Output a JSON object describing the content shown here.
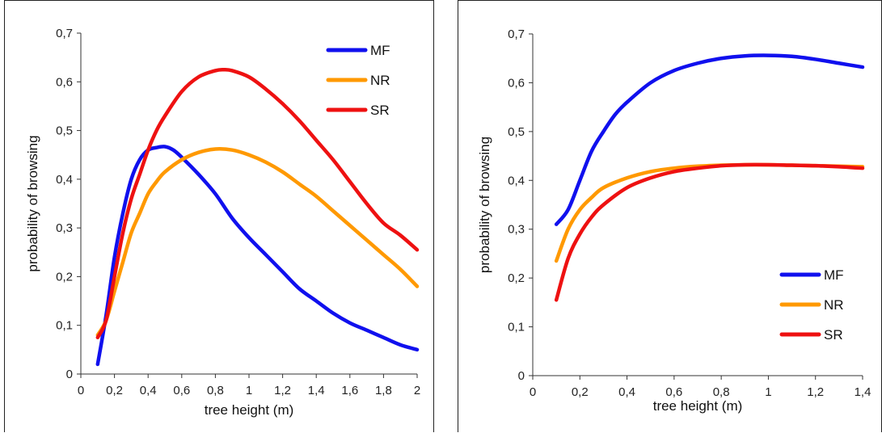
{
  "chart_data": [
    {
      "type": "line",
      "xlabel": "tree height (m)",
      "ylabel": "probability of browsing",
      "xlim": [
        0,
        2
      ],
      "ylim": [
        0,
        0.7
      ],
      "xticks": [
        "0",
        "0,2",
        "0,4",
        "0,6",
        "0,8",
        "1",
        "1,2",
        "1,4",
        "1,6",
        "1,8",
        "2"
      ],
      "yticks": [
        "0",
        "0,1",
        "0,2",
        "0,3",
        "0,4",
        "0,5",
        "0,6",
        "0,7"
      ],
      "legend_position": "top-right",
      "series": [
        {
          "name": "MF",
          "color": "#1010ee",
          "points": [
            [
              0.1,
              0.02
            ],
            [
              0.15,
              0.12
            ],
            [
              0.2,
              0.24
            ],
            [
              0.25,
              0.33
            ],
            [
              0.3,
              0.4
            ],
            [
              0.35,
              0.44
            ],
            [
              0.4,
              0.46
            ],
            [
              0.45,
              0.465
            ],
            [
              0.5,
              0.467
            ],
            [
              0.55,
              0.46
            ],
            [
              0.6,
              0.445
            ],
            [
              0.7,
              0.41
            ],
            [
              0.8,
              0.37
            ],
            [
              0.9,
              0.32
            ],
            [
              1.0,
              0.28
            ],
            [
              1.1,
              0.245
            ],
            [
              1.2,
              0.21
            ],
            [
              1.3,
              0.175
            ],
            [
              1.4,
              0.15
            ],
            [
              1.5,
              0.125
            ],
            [
              1.6,
              0.105
            ],
            [
              1.7,
              0.09
            ],
            [
              1.8,
              0.075
            ],
            [
              1.9,
              0.06
            ],
            [
              2.0,
              0.05
            ]
          ]
        },
        {
          "name": "NR",
          "color": "#ff9900",
          "points": [
            [
              0.1,
              0.08
            ],
            [
              0.15,
              0.11
            ],
            [
              0.2,
              0.17
            ],
            [
              0.25,
              0.23
            ],
            [
              0.3,
              0.29
            ],
            [
              0.35,
              0.33
            ],
            [
              0.4,
              0.37
            ],
            [
              0.45,
              0.395
            ],
            [
              0.5,
              0.415
            ],
            [
              0.6,
              0.44
            ],
            [
              0.7,
              0.455
            ],
            [
              0.8,
              0.462
            ],
            [
              0.9,
              0.46
            ],
            [
              1.0,
              0.45
            ],
            [
              1.1,
              0.435
            ],
            [
              1.2,
              0.415
            ],
            [
              1.3,
              0.39
            ],
            [
              1.4,
              0.365
            ],
            [
              1.5,
              0.335
            ],
            [
              1.6,
              0.305
            ],
            [
              1.7,
              0.275
            ],
            [
              1.8,
              0.245
            ],
            [
              1.9,
              0.215
            ],
            [
              2.0,
              0.18
            ]
          ]
        },
        {
          "name": "SR",
          "color": "#ee1111",
          "points": [
            [
              0.1,
              0.075
            ],
            [
              0.15,
              0.11
            ],
            [
              0.2,
              0.2
            ],
            [
              0.25,
              0.29
            ],
            [
              0.3,
              0.36
            ],
            [
              0.35,
              0.41
            ],
            [
              0.4,
              0.46
            ],
            [
              0.45,
              0.5
            ],
            [
              0.5,
              0.53
            ],
            [
              0.6,
              0.58
            ],
            [
              0.7,
              0.61
            ],
            [
              0.8,
              0.623
            ],
            [
              0.85,
              0.625
            ],
            [
              0.9,
              0.623
            ],
            [
              1.0,
              0.61
            ],
            [
              1.1,
              0.585
            ],
            [
              1.2,
              0.555
            ],
            [
              1.3,
              0.52
            ],
            [
              1.4,
              0.48
            ],
            [
              1.5,
              0.44
            ],
            [
              1.6,
              0.395
            ],
            [
              1.7,
              0.35
            ],
            [
              1.8,
              0.31
            ],
            [
              1.9,
              0.285
            ],
            [
              2.0,
              0.255
            ]
          ]
        }
      ]
    },
    {
      "type": "line",
      "xlabel": "tree height (m)",
      "ylabel": "probability of browsing",
      "xlim": [
        0,
        1.4
      ],
      "ylim": [
        0,
        0.7
      ],
      "xticks": [
        "0",
        "0,2",
        "0,4",
        "0,6",
        "0,8",
        "1",
        "1,2",
        "1,4"
      ],
      "yticks": [
        "0",
        "0,1",
        "0,2",
        "0,3",
        "0,4",
        "0,5",
        "0,6",
        "0,7"
      ],
      "legend_position": "bottom-right",
      "series": [
        {
          "name": "MF",
          "color": "#1010ee",
          "points": [
            [
              0.1,
              0.31
            ],
            [
              0.15,
              0.34
            ],
            [
              0.2,
              0.4
            ],
            [
              0.25,
              0.46
            ],
            [
              0.3,
              0.5
            ],
            [
              0.35,
              0.535
            ],
            [
              0.4,
              0.56
            ],
            [
              0.5,
              0.6
            ],
            [
              0.6,
              0.625
            ],
            [
              0.7,
              0.64
            ],
            [
              0.8,
              0.65
            ],
            [
              0.9,
              0.655
            ],
            [
              1.0,
              0.656
            ],
            [
              1.1,
              0.654
            ],
            [
              1.2,
              0.648
            ],
            [
              1.3,
              0.64
            ],
            [
              1.4,
              0.632
            ]
          ]
        },
        {
          "name": "NR",
          "color": "#ff9900",
          "points": [
            [
              0.1,
              0.235
            ],
            [
              0.15,
              0.3
            ],
            [
              0.2,
              0.34
            ],
            [
              0.25,
              0.365
            ],
            [
              0.3,
              0.385
            ],
            [
              0.4,
              0.405
            ],
            [
              0.5,
              0.418
            ],
            [
              0.6,
              0.425
            ],
            [
              0.7,
              0.429
            ],
            [
              0.8,
              0.431
            ],
            [
              0.9,
              0.432
            ],
            [
              1.0,
              0.432
            ],
            [
              1.1,
              0.431
            ],
            [
              1.2,
              0.43
            ],
            [
              1.3,
              0.429
            ],
            [
              1.4,
              0.428
            ]
          ]
        },
        {
          "name": "SR",
          "color": "#ee1111",
          "points": [
            [
              0.1,
              0.155
            ],
            [
              0.15,
              0.24
            ],
            [
              0.2,
              0.29
            ],
            [
              0.25,
              0.325
            ],
            [
              0.3,
              0.35
            ],
            [
              0.4,
              0.385
            ],
            [
              0.5,
              0.405
            ],
            [
              0.6,
              0.418
            ],
            [
              0.7,
              0.425
            ],
            [
              0.8,
              0.43
            ],
            [
              0.9,
              0.432
            ],
            [
              1.0,
              0.432
            ],
            [
              1.1,
              0.431
            ],
            [
              1.2,
              0.43
            ],
            [
              1.3,
              0.428
            ],
            [
              1.4,
              0.425
            ]
          ]
        }
      ]
    }
  ]
}
